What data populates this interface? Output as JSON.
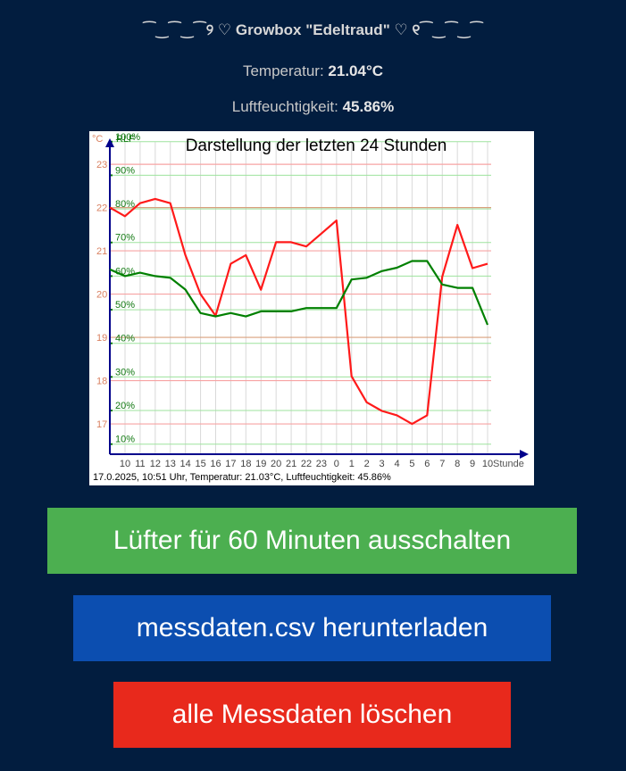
{
  "header": {
    "title": "⁀‿⁀‿⁀୨ ♡ Growbox \"Edeltraud\" ♡ ୧⁀‿⁀‿⁀"
  },
  "readings": {
    "temperature_label": "Temperatur:",
    "temperature_value": "21.04°C",
    "humidity_label": "Luftfeuchtigkeit:",
    "humidity_value": "45.86%"
  },
  "chart_data": {
    "type": "line",
    "title": "Darstellung der letzten 24 Stunden",
    "ylabel_left": "°C",
    "ylabel_right": "RLF",
    "xlabel": "Stunde",
    "footer": "17.0.2025, 10:51 Uhr, Temperatur: 21.03°C, Luftfeuchtigkeit: 45.86%",
    "x_ticks": [
      "10",
      "11",
      "12",
      "13",
      "14",
      "15",
      "16",
      "17",
      "18",
      "19",
      "20",
      "21",
      "22",
      "23",
      "0",
      "1",
      "2",
      "3",
      "4",
      "5",
      "6",
      "7",
      "8",
      "9",
      "10"
    ],
    "temp_ticks": [
      17,
      18,
      19,
      20,
      21,
      22,
      23
    ],
    "hum_ticks": [
      "10%",
      "20%",
      "30%",
      "40%",
      "50%",
      "60%",
      "70%",
      "80%",
      "90%",
      "100%"
    ],
    "temp_range": [
      16.3,
      23.6
    ],
    "hum_range": [
      7,
      101
    ],
    "series": [
      {
        "name": "Temperatur",
        "color": "#ff1a1a",
        "unit": "°C",
        "values": [
          22.0,
          21.8,
          22.1,
          22.2,
          22.1,
          20.9,
          20.0,
          19.5,
          20.7,
          20.9,
          20.1,
          21.2,
          21.2,
          21.1,
          21.4,
          21.7,
          18.1,
          17.5,
          17.3,
          17.2,
          17.0,
          17.2,
          20.4,
          21.6,
          20.6,
          20.7
        ]
      },
      {
        "name": "Luftfeuchtigkeit",
        "color": "#008000",
        "unit": "%",
        "values": [
          62,
          60,
          61,
          60,
          59.5,
          56,
          49,
          48,
          49,
          48,
          49.5,
          49.5,
          49.5,
          50.5,
          50.5,
          50.5,
          59,
          59.5,
          61.5,
          62.5,
          64.5,
          64.5,
          57.5,
          56.5,
          56.5,
          45.5
        ]
      }
    ]
  },
  "buttons": {
    "fan_off": "Lüfter für 60 Minuten ausschalten",
    "download_csv": "messdaten.csv herunterladen",
    "delete_all": "alle Messdaten löschen"
  }
}
